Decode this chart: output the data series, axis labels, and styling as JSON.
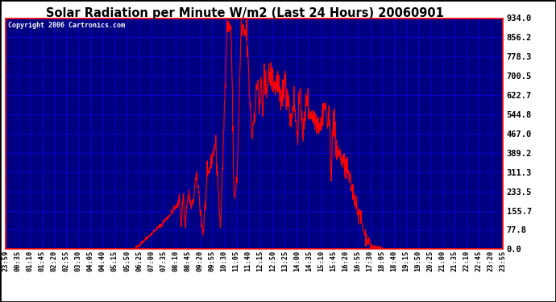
{
  "title": "Solar Radiation per Minute W/m2 (Last 24 Hours) 20060901",
  "copyright_text": "Copyright 2006 Cartronics.com",
  "bg_color": "#000080",
  "line_color": "#ff0000",
  "grid_color": "#0000ff",
  "tick_label_color": "#000000",
  "title_color": "#000000",
  "outer_bg_color": "#ffffff",
  "copyright_color": "#ffffff",
  "ylim": [
    0.0,
    934.0
  ],
  "yticks": [
    0.0,
    77.8,
    155.7,
    233.5,
    311.3,
    389.2,
    467.0,
    544.8,
    622.7,
    700.5,
    778.3,
    856.2,
    934.0
  ],
  "x_labels": [
    "23:59",
    "00:35",
    "01:10",
    "01:45",
    "02:20",
    "02:55",
    "03:30",
    "04:05",
    "04:40",
    "05:15",
    "05:50",
    "06:25",
    "07:00",
    "07:35",
    "08:10",
    "08:45",
    "09:20",
    "09:55",
    "10:30",
    "11:05",
    "11:40",
    "12:15",
    "12:50",
    "13:25",
    "14:00",
    "14:35",
    "15:10",
    "15:45",
    "16:20",
    "16:55",
    "17:30",
    "18:05",
    "18:40",
    "19:15",
    "19:50",
    "20:25",
    "21:00",
    "21:35",
    "22:10",
    "22:45",
    "23:20",
    "23:55"
  ],
  "figsize": [
    6.9,
    3.75
  ],
  "dpi": 100
}
